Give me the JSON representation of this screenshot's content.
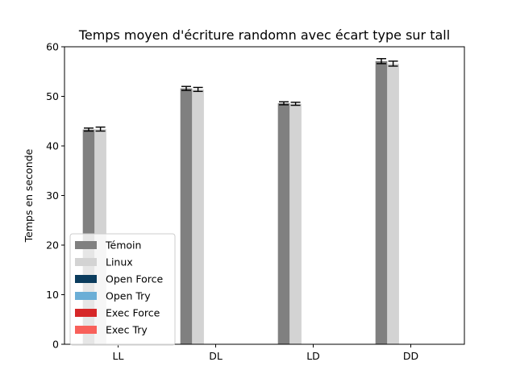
{
  "chart_data": {
    "type": "bar",
    "title": "Temps moyen d'écriture randomn avec écart type sur tall",
    "xlabel": "",
    "ylabel": "Temps en seconde",
    "categories": [
      "LL",
      "DL",
      "LD",
      "DD"
    ],
    "ylim": [
      0,
      60
    ],
    "yticks": [
      0,
      10,
      20,
      30,
      40,
      50,
      60
    ],
    "grid": false,
    "legend_position": "lower-left",
    "series": [
      {
        "name": "Témoin",
        "color": "#808080",
        "values": [
          43.3,
          51.6,
          48.6,
          57.1
        ],
        "errors": [
          0.3,
          0.4,
          0.3,
          0.5
        ]
      },
      {
        "name": "Linux",
        "color": "#d3d3d3",
        "values": [
          43.4,
          51.4,
          48.5,
          56.6
        ],
        "errors": [
          0.4,
          0.4,
          0.3,
          0.5
        ]
      },
      {
        "name": "Open Force",
        "color": "#0b3c5d",
        "values": [
          0,
          0,
          0,
          0
        ],
        "errors": [
          0,
          0,
          0,
          0
        ]
      },
      {
        "name": "Open Try",
        "color": "#6baed6",
        "values": [
          0,
          0,
          0,
          0
        ],
        "errors": [
          0,
          0,
          0,
          0
        ]
      },
      {
        "name": "Exec Force",
        "color": "#d62728",
        "values": [
          0,
          0,
          0,
          0
        ],
        "errors": [
          0,
          0,
          0,
          0
        ]
      },
      {
        "name": "Exec Try",
        "color": "#f8605a",
        "values": [
          0,
          0,
          0,
          0
        ],
        "errors": [
          0,
          0,
          0,
          0
        ]
      }
    ]
  }
}
